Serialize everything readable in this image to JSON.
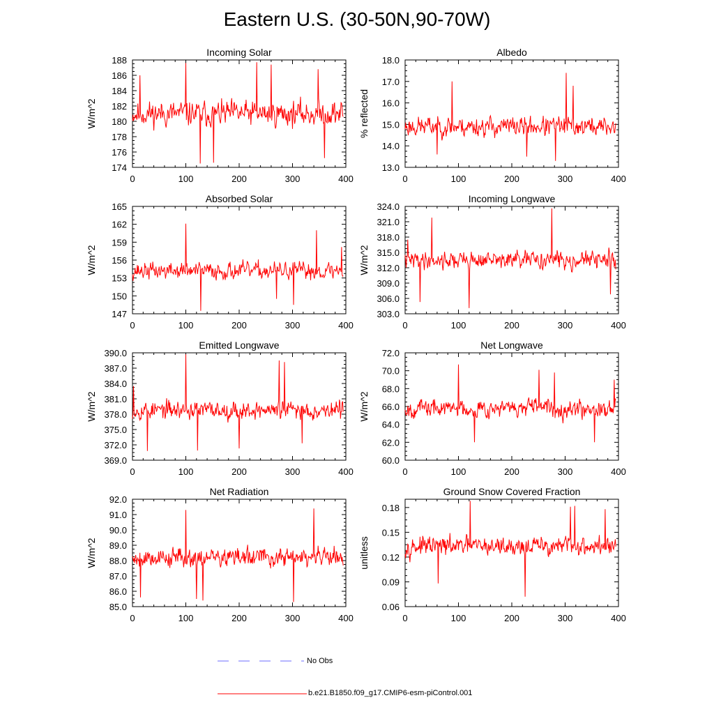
{
  "title": "Eastern U.S. (30-50N,90-70W)",
  "legend": [
    {
      "label": "No Obs",
      "color": "#6b6bff",
      "style": "dashed"
    },
    {
      "label": "b.e21.B1850.f09_g17.CMIP6-esm-piControl.001",
      "color": "#ff0000",
      "style": "solid"
    }
  ],
  "chart_data": [
    {
      "type": "line",
      "title": "Incoming Solar",
      "ylabel": "W/m^2",
      "xlim": [
        0,
        400
      ],
      "ylim": [
        174,
        188
      ],
      "xticks": [
        "0",
        "100",
        "200",
        "300",
        "400"
      ],
      "yticks": [
        "174",
        "176",
        "178",
        "180",
        "182",
        "184",
        "186",
        "188"
      ],
      "mean": 181.0,
      "amp": 2.3,
      "seed": 11,
      "spikes": [
        [
          100,
          187.6
        ],
        [
          127,
          174.5
        ],
        [
          152,
          174.6
        ],
        [
          233,
          187.7
        ],
        [
          260,
          187.4
        ],
        [
          348,
          186.8
        ],
        [
          360,
          175.2
        ],
        [
          14,
          186.0
        ]
      ]
    },
    {
      "type": "line",
      "title": "Albedo",
      "ylabel": "% reflected",
      "xlim": [
        0,
        400
      ],
      "ylim": [
        13.0,
        18.0
      ],
      "xticks": [
        "0",
        "100",
        "200",
        "300",
        "400"
      ],
      "yticks": [
        "13.0",
        "14.0",
        "15.0",
        "16.0",
        "17.0",
        "18.0"
      ],
      "mean": 14.9,
      "amp": 0.65,
      "seed": 23,
      "spikes": [
        [
          88,
          17.0
        ],
        [
          302,
          17.4
        ],
        [
          315,
          16.8
        ],
        [
          282,
          13.3
        ],
        [
          228,
          13.5
        ],
        [
          60,
          13.6
        ]
      ]
    },
    {
      "type": "line",
      "title": "Absorbed Solar",
      "ylabel": "W/m^2",
      "xlim": [
        0,
        400
      ],
      "ylim": [
        147,
        165
      ],
      "xticks": [
        "0",
        "100",
        "200",
        "300",
        "400"
      ],
      "yticks": [
        "147",
        "150",
        "153",
        "156",
        "159",
        "162",
        "165"
      ],
      "mean": 154.2,
      "amp": 2.0,
      "seed": 37,
      "spikes": [
        [
          100,
          162.1
        ],
        [
          128,
          147.5
        ],
        [
          302,
          148.5
        ],
        [
          345,
          161.0
        ],
        [
          392,
          158.2
        ],
        [
          270,
          149.5
        ]
      ]
    },
    {
      "type": "line",
      "title": "Incoming Longwave",
      "ylabel": "W/m^2",
      "xlim": [
        0,
        400
      ],
      "ylim": [
        303.0,
        324.0
      ],
      "xticks": [
        "0",
        "100",
        "200",
        "300",
        "400"
      ],
      "yticks": [
        "303.0",
        "306.0",
        "309.0",
        "312.0",
        "315.0",
        "318.0",
        "321.0",
        "324.0"
      ],
      "mean": 313.5,
      "amp": 2.4,
      "seed": 41,
      "spikes": [
        [
          275,
          323.6
        ],
        [
          120,
          304.1
        ],
        [
          28,
          305.3
        ],
        [
          50,
          321.8
        ],
        [
          385,
          306.8
        ],
        [
          5,
          317.5
        ]
      ]
    },
    {
      "type": "line",
      "title": "Emitted Longwave",
      "ylabel": "W/m^2",
      "xlim": [
        0,
        400
      ],
      "ylim": [
        369.0,
        390.0
      ],
      "xticks": [
        "0",
        "100",
        "200",
        "300",
        "400"
      ],
      "yticks": [
        "369.0",
        "372.0",
        "375.0",
        "378.0",
        "381.0",
        "384.0",
        "387.0",
        "390.0"
      ],
      "mean": 378.8,
      "amp": 2.5,
      "seed": 53,
      "spikes": [
        [
          100,
          389.7
        ],
        [
          275,
          388.5
        ],
        [
          285,
          388.2
        ],
        [
          28,
          370.8
        ],
        [
          122,
          370.9
        ],
        [
          200,
          371.3
        ],
        [
          318,
          372.3
        ],
        [
          2,
          383.5
        ]
      ]
    },
    {
      "type": "line",
      "title": "Net Longwave",
      "ylabel": "W/m^2",
      "xlim": [
        0,
        400
      ],
      "ylim": [
        60.0,
        72.0
      ],
      "xticks": [
        "0",
        "100",
        "200",
        "300",
        "400"
      ],
      "yticks": [
        "60.0",
        "62.0",
        "64.0",
        "66.0",
        "68.0",
        "70.0",
        "72.0"
      ],
      "mean": 65.8,
      "amp": 1.4,
      "seed": 67,
      "spikes": [
        [
          100,
          70.7
        ],
        [
          251,
          70.1
        ],
        [
          355,
          62.0
        ],
        [
          130,
          62.0
        ],
        [
          392,
          69.0
        ],
        [
          280,
          69.8
        ]
      ]
    },
    {
      "type": "line",
      "title": "Net Radiation",
      "ylabel": "W/m^2",
      "xlim": [
        0,
        400
      ],
      "ylim": [
        85.0,
        92.0
      ],
      "xticks": [
        "0",
        "100",
        "200",
        "300",
        "400"
      ],
      "yticks": [
        "85.0",
        "86.0",
        "87.0",
        "88.0",
        "89.0",
        "90.0",
        "91.0",
        "92.0"
      ],
      "mean": 88.2,
      "amp": 0.9,
      "seed": 79,
      "spikes": [
        [
          100,
          91.3
        ],
        [
          340,
          91.4
        ],
        [
          302,
          85.3
        ],
        [
          120,
          85.5
        ],
        [
          132,
          85.4
        ],
        [
          15,
          85.6
        ]
      ]
    },
    {
      "type": "line",
      "title": "Ground Snow Covered Fraction",
      "ylabel": "unitless",
      "xlim": [
        0,
        400
      ],
      "ylim": [
        0.06,
        0.19
      ],
      "xticks": [
        "0",
        "100",
        "200",
        "300",
        "400"
      ],
      "yticks": [
        "0.06",
        "0.09",
        "0.12",
        "0.15",
        "0.18"
      ],
      "mean": 0.133,
      "amp": 0.016,
      "seed": 97,
      "spikes": [
        [
          122,
          0.188
        ],
        [
          225,
          0.072
        ],
        [
          310,
          0.181
        ],
        [
          318,
          0.182
        ],
        [
          62,
          0.088
        ],
        [
          375,
          0.178
        ]
      ]
    }
  ]
}
